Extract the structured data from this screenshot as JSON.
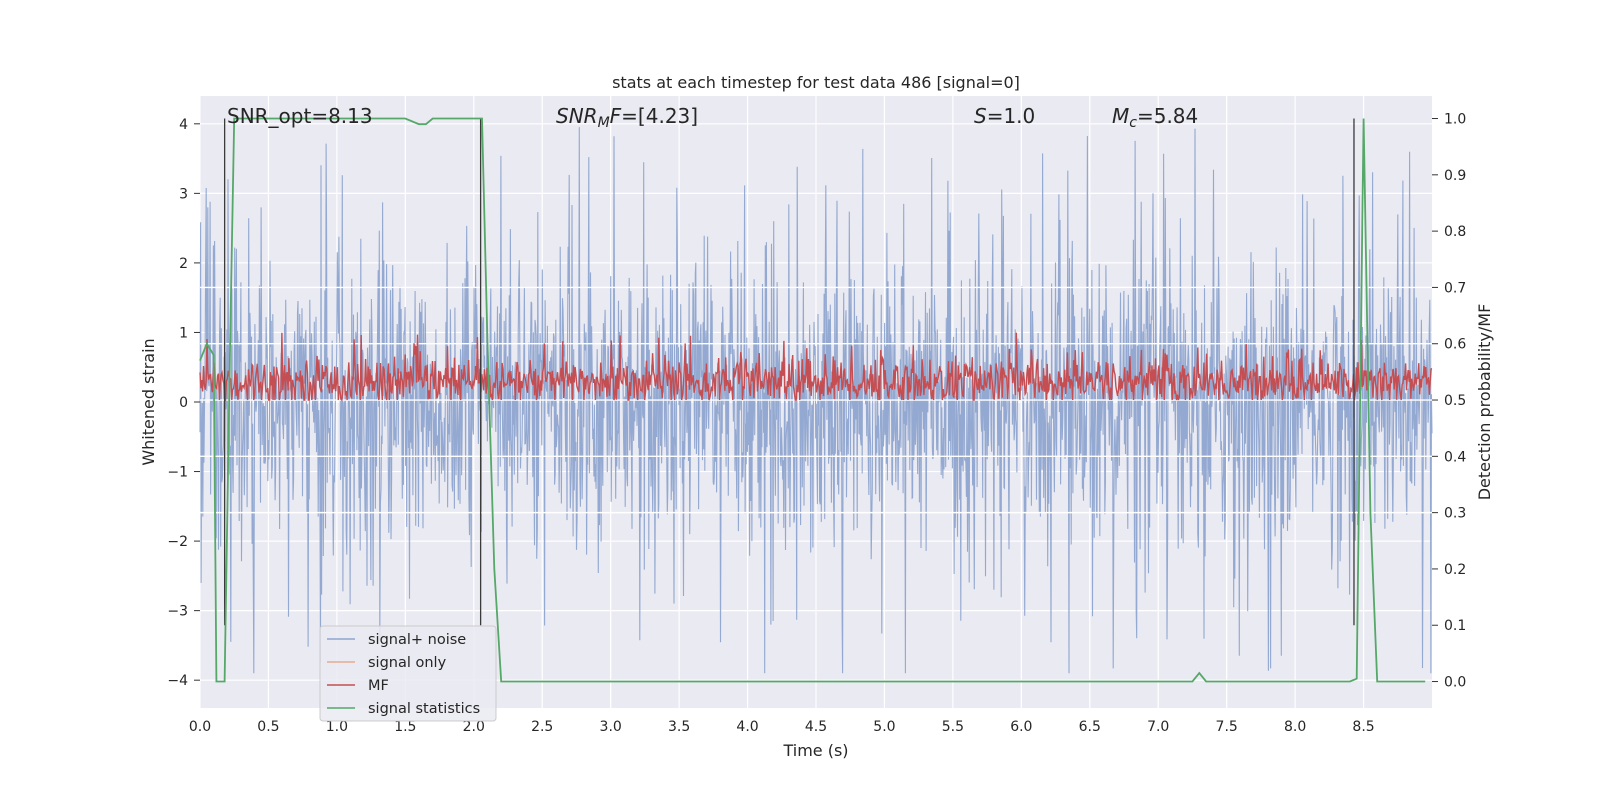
{
  "chart_data": {
    "type": "line",
    "title": "stats at each timestep for test data 486 [signal=0]",
    "xlabel": "Time (s)",
    "ylabel": "Whitened strain",
    "ylabel_right": "Detection probability/MF",
    "xlim": [
      0.0,
      9.0
    ],
    "ylim": [
      -4.4,
      4.4
    ],
    "ylim_right": [
      -0.047,
      1.04
    ],
    "x_ticks": [
      "0.0",
      "0.5",
      "1.0",
      "1.5",
      "2.0",
      "2.5",
      "3.0",
      "3.5",
      "4.0",
      "4.5",
      "5.0",
      "5.5",
      "6.0",
      "6.5",
      "7.0",
      "7.5",
      "8.0",
      "8.5"
    ],
    "y_ticks": [
      "−4",
      "−3",
      "−2",
      "−1",
      "0",
      "1",
      "2",
      "3",
      "4"
    ],
    "y_ticks_right": [
      "0.0",
      "0.1",
      "0.2",
      "0.3",
      "0.4",
      "0.5",
      "0.6",
      "0.7",
      "0.8",
      "0.9",
      "1.0"
    ],
    "grid": true,
    "legend_position": "lower-left",
    "annotations": {
      "snr_opt": "SNR_opt=8.13",
      "snr_mf_var": "SNR",
      "snr_mf_sub": "M",
      "snr_mf_var2": "F",
      "snr_mf_val": "=[4.23]",
      "s_var": "S",
      "s_val": "=1.0",
      "mc_var": "M",
      "mc_sub": "c",
      "mc_val": "=5.84"
    },
    "series": [
      {
        "name": "signal+ noise",
        "color": "#8fa5cf",
        "axis": "left",
        "description_range": [
          -3.9,
          4.0
        ],
        "typical_band": [
          -1.5,
          1.65
        ]
      },
      {
        "name": "signal only",
        "color": "#e8a990",
        "axis": "left",
        "values": []
      },
      {
        "name": "MF",
        "color": "#c44e52",
        "axis": "right",
        "typical_band": [
          0.5,
          0.58
        ],
        "range": [
          0.5,
          0.62
        ]
      },
      {
        "name": "signal statistics",
        "color": "#55a868",
        "axis": "right",
        "x": [
          0.0,
          0.05,
          0.1,
          0.12,
          0.18,
          0.22,
          0.25,
          0.5,
          1.0,
          1.5,
          1.6,
          1.65,
          1.7,
          2.0,
          2.06,
          2.1,
          2.15,
          2.2,
          3.0,
          5.0,
          7.0,
          7.25,
          7.3,
          7.35,
          8.0,
          8.4,
          8.45,
          8.5,
          8.55,
          8.6,
          8.95
        ],
        "y": [
          0.57,
          0.6,
          0.58,
          0.0,
          0.0,
          0.6,
          1.0,
          1.0,
          1.0,
          1.0,
          0.99,
          0.99,
          1.0,
          1.0,
          1.0,
          0.6,
          0.2,
          0.0,
          0.0,
          0.0,
          0.0,
          0.0,
          0.015,
          0.0,
          0.0,
          0.0,
          0.005,
          1.0,
          0.3,
          0.0,
          0.0
        ]
      }
    ],
    "vertical_lines": [
      0.18,
      2.05,
      8.43
    ],
    "white_reference_lines_right": [
      0.7,
      0.6,
      0.5,
      0.4,
      0.3
    ]
  }
}
